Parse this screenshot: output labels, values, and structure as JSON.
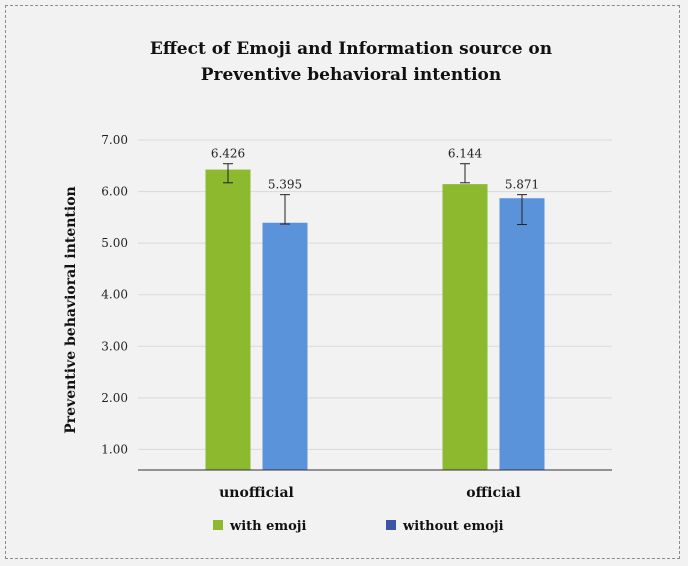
{
  "chart_data": {
    "type": "bar",
    "title_lines": [
      "Effect of Emoji and Information source on",
      "Preventive behavioral intention"
    ],
    "xlabel": "",
    "ylabel": "Preventive behavioral intention",
    "ylim": [
      0.6,
      7.0
    ],
    "yticks": [
      "1.00",
      "2.00",
      "3.00",
      "4.00",
      "5.00",
      "6.00",
      "7.00"
    ],
    "categories": [
      "unofficial",
      "official"
    ],
    "series": [
      {
        "name": "with emoji",
        "color": "#8cb92e",
        "values": [
          6.426,
          6.144
        ],
        "labels": [
          "6.426",
          "6.144"
        ],
        "error_low": [
          6.17,
          6.17
        ],
        "error_high": [
          6.54,
          6.54
        ]
      },
      {
        "name": "without emoji",
        "color": "#5b93db",
        "legend_color": "#3a55a5",
        "values": [
          5.395,
          5.871
        ],
        "labels": [
          "5.395",
          "5.871"
        ],
        "error_low": [
          5.37,
          5.36
        ],
        "error_high": [
          5.94,
          5.94
        ]
      }
    ],
    "grid": true,
    "legend_position": "bottom"
  }
}
